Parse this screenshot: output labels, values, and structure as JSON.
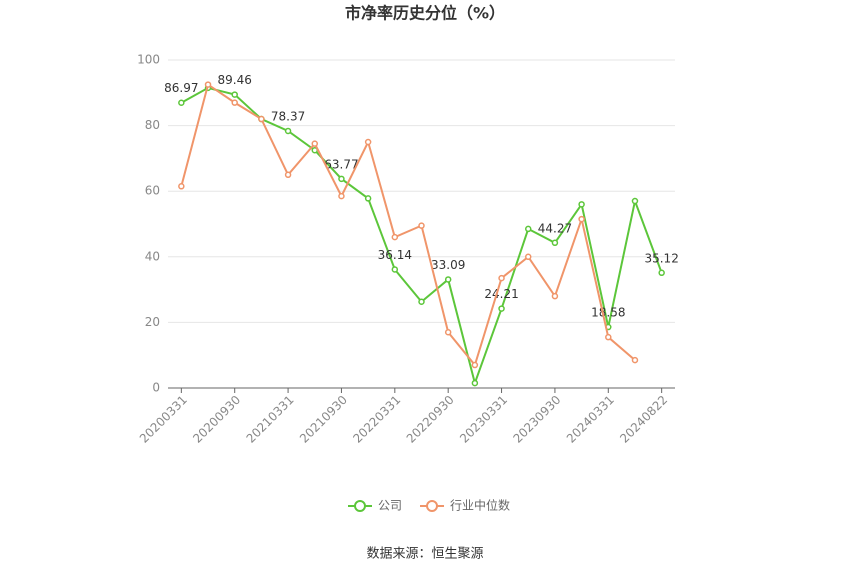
{
  "chart_data": {
    "type": "line",
    "title": "市净率历史分位（%）",
    "categories": [
      "20200331",
      null,
      "20200930",
      null,
      "20210331",
      null,
      "20210930",
      null,
      "20220331",
      null,
      "20220930",
      null,
      "20230331",
      null,
      "20230930",
      null,
      "20240331",
      null,
      "20240822"
    ],
    "series": [
      {
        "name": "公司",
        "color": "#5cc63a",
        "values": [
          86.97,
          91.5,
          89.46,
          82,
          78.37,
          72.5,
          63.77,
          57.8,
          36.14,
          26.3,
          33.09,
          1.5,
          24.21,
          48.5,
          44.27,
          56,
          18.58,
          57,
          35.12
        ],
        "value_labels": [
          "86.97",
          null,
          "89.46",
          null,
          "78.37",
          null,
          "63.77",
          null,
          "36.14",
          null,
          "33.09",
          null,
          "24.21",
          null,
          "44.27",
          null,
          "18.58",
          null,
          "35.12"
        ]
      },
      {
        "name": "行业中位数",
        "color": "#f0956a",
        "values": [
          61.5,
          92.5,
          87,
          82,
          65,
          74.5,
          58.5,
          75,
          46,
          49.5,
          17,
          7,
          33.5,
          40,
          28,
          51.5,
          15.5,
          8.5,
          null
        ]
      }
    ],
    "ylim": [
      0,
      100
    ],
    "yticks": [
      0,
      20,
      40,
      60,
      80,
      100
    ],
    "grid": true,
    "source": "数据来源：恒生聚源"
  }
}
